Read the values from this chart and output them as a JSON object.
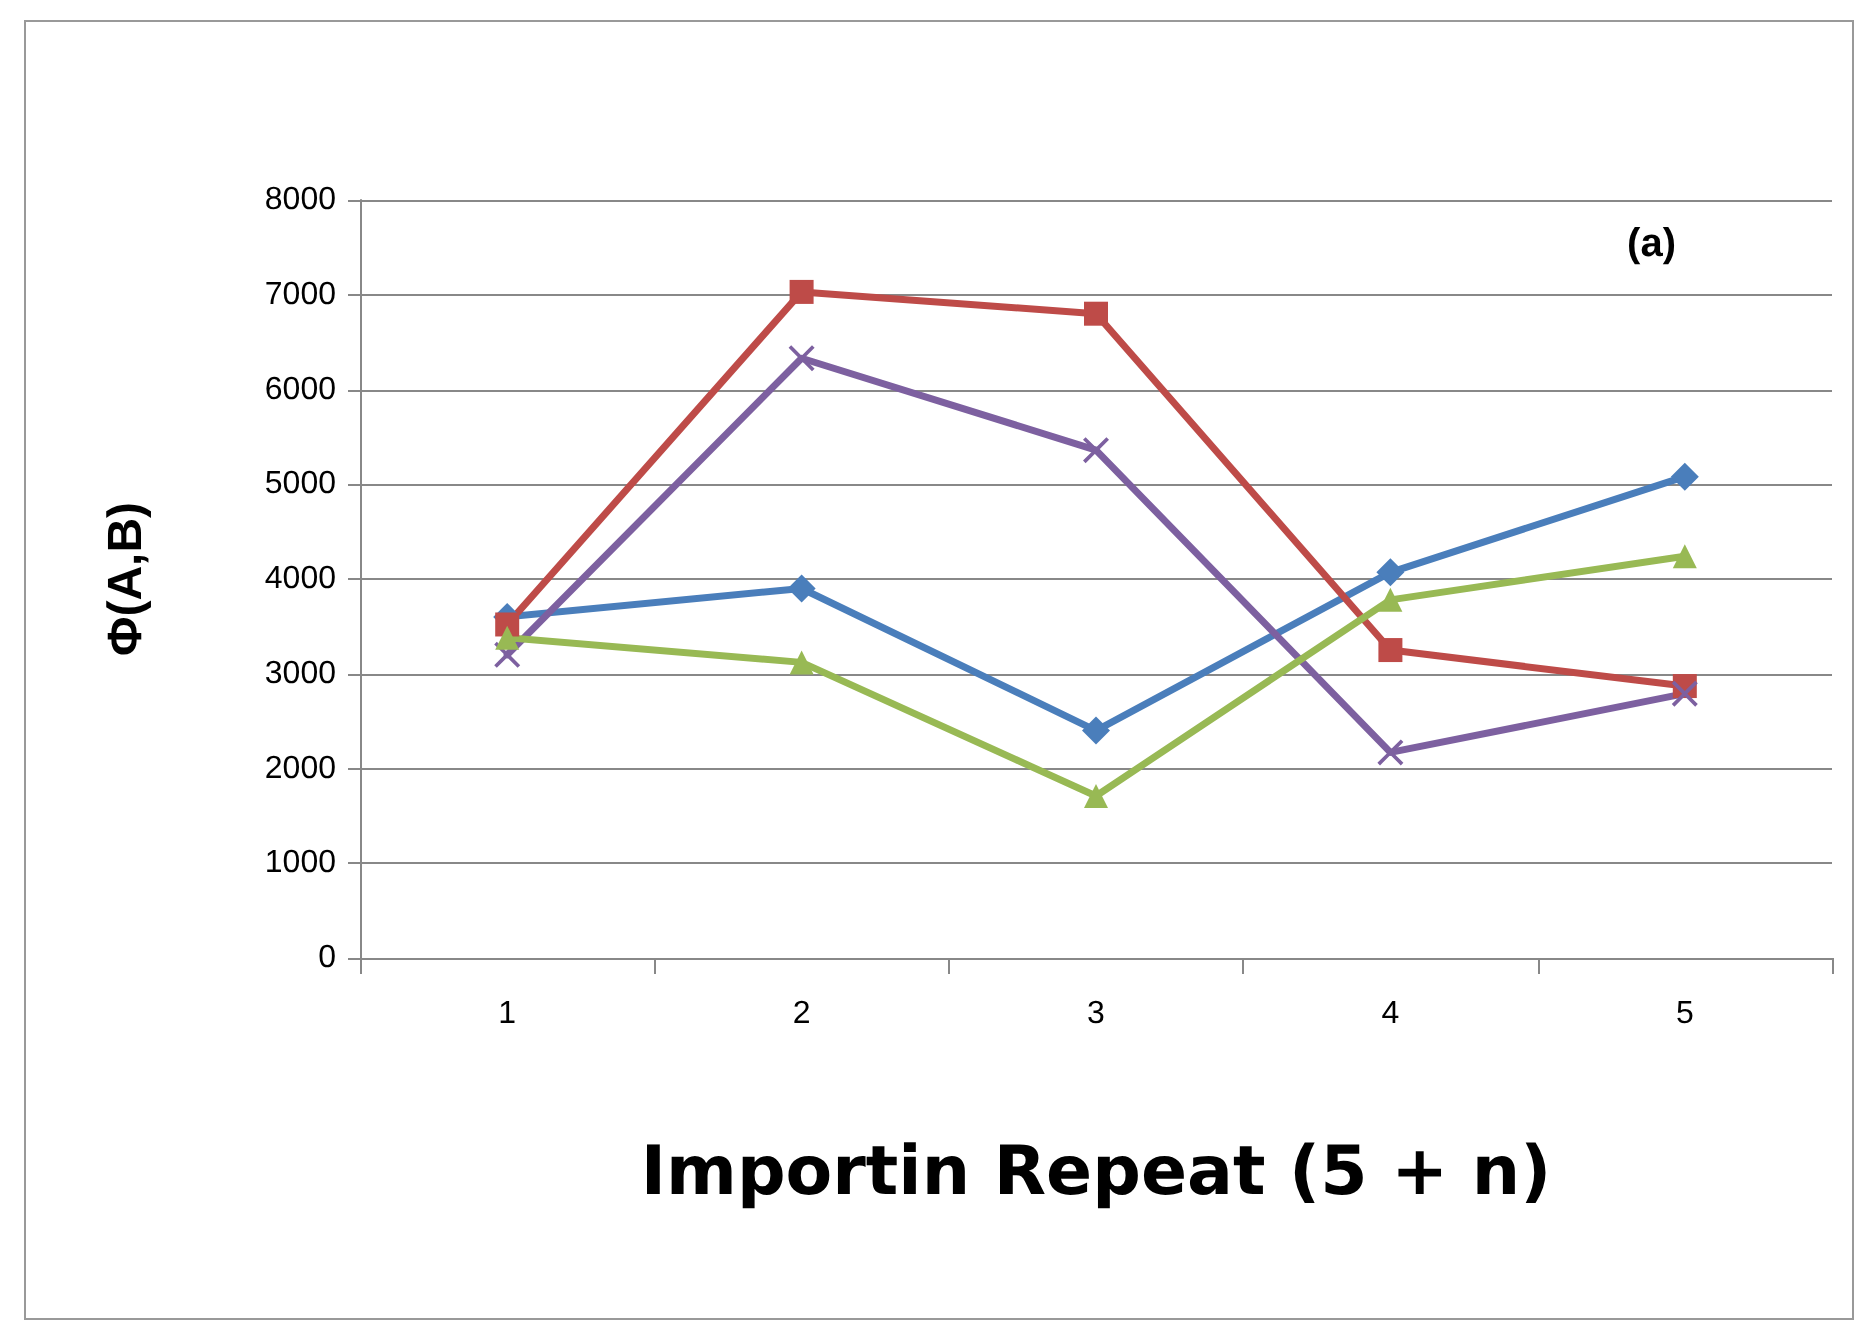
{
  "chart_data": {
    "type": "line",
    "xlabel": "Importin Repeat (5 + n)",
    "ylabel": "Φ(A,B)",
    "annotations": [
      "(a)"
    ],
    "categories": [
      "1",
      "2",
      "3",
      "4",
      "5"
    ],
    "ylim": [
      0,
      8000
    ],
    "yticks": [
      0,
      1000,
      2000,
      3000,
      4000,
      5000,
      6000,
      7000,
      8000
    ],
    "grid": "y",
    "line_style": "solid",
    "series": [
      {
        "color": "#4a7ebb",
        "marker": "diamond",
        "values": [
          3600,
          3900,
          2400,
          4070,
          5080
        ]
      },
      {
        "color": "#be4b48",
        "marker": "square",
        "values": [
          3520,
          7030,
          6800,
          3250,
          2870
        ]
      },
      {
        "color": "#7d60a0",
        "marker": "cross",
        "values": [
          3200,
          6330,
          5360,
          2170,
          2790
        ]
      },
      {
        "color": "#98b954",
        "marker": "triangle",
        "values": [
          3380,
          3120,
          1710,
          3780,
          4240
        ]
      }
    ]
  }
}
